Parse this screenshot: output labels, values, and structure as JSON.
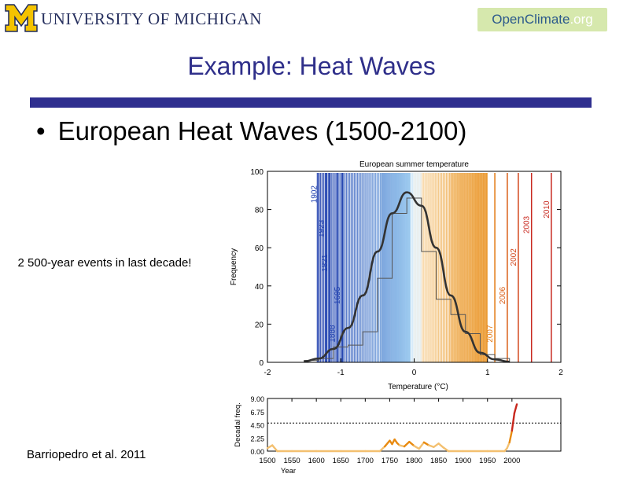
{
  "header": {
    "university_name": "UNIVERSITY OF MICHIGAN",
    "logo_open": "Open",
    "logo_climate": "Climate",
    "logo_org": ".org"
  },
  "slide": {
    "title": "Example: Heat Waves",
    "bullet_marker": "•",
    "bullet": "European Heat Waves (1500-2100)",
    "note": "2 500-year events in last decade!",
    "citation": "Barriopedro et al. 2011"
  },
  "colors": {
    "title": "#2f2f8a",
    "bar": "#2f2f8f",
    "curve": "#333333",
    "cold_dark": "#1f3fae",
    "cold_light": "#8fc6ef",
    "warm_light": "#f8d9a6",
    "warm_dark": "#e88a10",
    "record": "#c8281e"
  },
  "chart_data": [
    {
      "type": "bar",
      "title": "European summer temperature",
      "xlabel": "Temperature (°C)",
      "ylabel": "Frequency",
      "xlim": [
        -2,
        2
      ],
      "ylim": [
        0,
        100
      ],
      "xticks": [
        -2,
        -1,
        0,
        1,
        2
      ],
      "yticks": [
        0,
        20,
        40,
        60,
        80,
        100
      ],
      "histogram": {
        "bins": [
          -1.5,
          -1.3,
          -1.1,
          -0.9,
          -0.7,
          -0.5,
          -0.3,
          -0.1,
          0.1,
          0.3,
          0.5,
          0.7,
          0.9,
          1.1,
          1.3
        ],
        "counts": [
          1,
          2,
          8,
          9,
          16,
          44,
          78,
          86,
          58,
          33,
          25,
          15,
          4,
          2
        ]
      },
      "fitted_curve": {
        "x": [
          -1.5,
          -1.3,
          -1.1,
          -0.9,
          -0.7,
          -0.5,
          -0.3,
          -0.1,
          0.1,
          0.3,
          0.5,
          0.7,
          0.9,
          1.1,
          1.3
        ],
        "y": [
          0.5,
          2,
          7,
          18,
          35,
          58,
          78,
          89,
          82,
          60,
          35,
          16,
          5,
          1.5,
          0.3
        ]
      },
      "annotated_years": [
        {
          "year": "1888",
          "temperature": -1.05
        },
        {
          "year": "1695",
          "temperature": -0.98
        },
        {
          "year": "1923",
          "temperature": -1.2
        },
        {
          "year": "1821",
          "temperature": -1.15
        },
        {
          "year": "1902",
          "temperature": -1.3
        },
        {
          "year": "2007",
          "temperature": 1.1
        },
        {
          "year": "2006",
          "temperature": 1.27
        },
        {
          "year": "2002",
          "temperature": 1.42
        },
        {
          "year": "2003",
          "temperature": 1.6
        },
        {
          "year": "2010",
          "temperature": 1.87
        }
      ]
    },
    {
      "type": "line",
      "xlabel": "Year",
      "ylabel": "Decadal freq.",
      "xlim": [
        1500,
        2100
      ],
      "ylim": [
        0,
        9
      ],
      "xticks": [
        1500,
        1550,
        1600,
        1650,
        1700,
        1750,
        1800,
        1850,
        1900,
        1950,
        2000
      ],
      "ytick_labels": [
        "9.00",
        "6.75",
        "4.50",
        "2.25",
        "0.00"
      ],
      "threshold": 4.8,
      "series": [
        {
          "name": "Decadal frequency",
          "x": [
            1500,
            1510,
            1520,
            1550,
            1600,
            1650,
            1700,
            1730,
            1740,
            1750,
            1755,
            1760,
            1765,
            1770,
            1780,
            1790,
            1800,
            1810,
            1820,
            1830,
            1840,
            1850,
            1860,
            1870,
            1900,
            1950,
            1985,
            1990,
            1995,
            2000,
            2005,
            2010
          ],
          "values": [
            0.5,
            1.0,
            0,
            0,
            0,
            0,
            0,
            0,
            0.8,
            1.8,
            1.2,
            2.0,
            1.4,
            1.0,
            0.8,
            1.6,
            0.9,
            0.4,
            1.5,
            1.0,
            0.7,
            1.3,
            0.6,
            0,
            0,
            0,
            0,
            0.5,
            1.5,
            3.5,
            6.5,
            8.0
          ]
        }
      ]
    }
  ]
}
